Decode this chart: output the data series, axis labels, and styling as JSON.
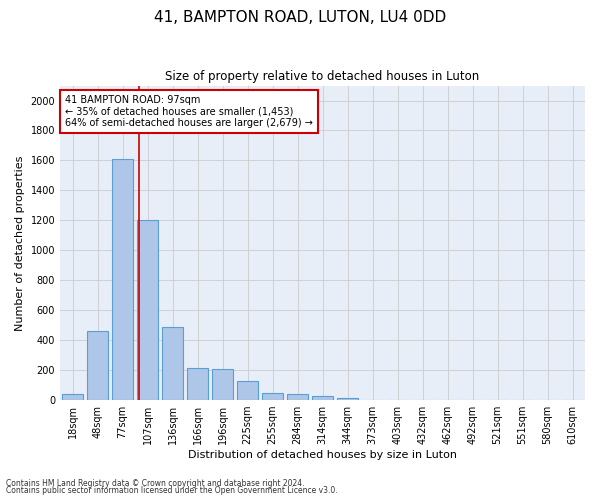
{
  "title": "41, BAMPTON ROAD, LUTON, LU4 0DD",
  "subtitle": "Size of property relative to detached houses in Luton",
  "xlabel": "Distribution of detached houses by size in Luton",
  "ylabel": "Number of detached properties",
  "bar_labels": [
    "18sqm",
    "48sqm",
    "77sqm",
    "107sqm",
    "136sqm",
    "166sqm",
    "196sqm",
    "225sqm",
    "255sqm",
    "284sqm",
    "314sqm",
    "344sqm",
    "373sqm",
    "403sqm",
    "432sqm",
    "462sqm",
    "492sqm",
    "521sqm",
    "551sqm",
    "580sqm",
    "610sqm"
  ],
  "bar_values": [
    40,
    460,
    1610,
    1200,
    490,
    215,
    210,
    130,
    50,
    40,
    25,
    15,
    0,
    0,
    0,
    0,
    0,
    0,
    0,
    0,
    0
  ],
  "bar_color": "#aec6e8",
  "bar_edge_color": "#5a9fd4",
  "vline_color": "#cc0000",
  "annotation_text": "41 BAMPTON ROAD: 97sqm\n← 35% of detached houses are smaller (1,453)\n64% of semi-detached houses are larger (2,679) →",
  "annotation_box_color": "#cc0000",
  "annotation_facecolor": "#ffffff",
  "ylim": [
    0,
    2100
  ],
  "yticks": [
    0,
    200,
    400,
    600,
    800,
    1000,
    1200,
    1400,
    1600,
    1800,
    2000
  ],
  "title_fontsize": 11,
  "subtitle_fontsize": 8.5,
  "xlabel_fontsize": 8,
  "ylabel_fontsize": 8,
  "tick_fontsize": 7,
  "footer_line1": "Contains HM Land Registry data © Crown copyright and database right 2024.",
  "footer_line2": "Contains public sector information licensed under the Open Government Licence v3.0.",
  "bg_color": "#ffffff",
  "grid_color": "#cccccc",
  "axes_bg_color": "#e8eef8"
}
